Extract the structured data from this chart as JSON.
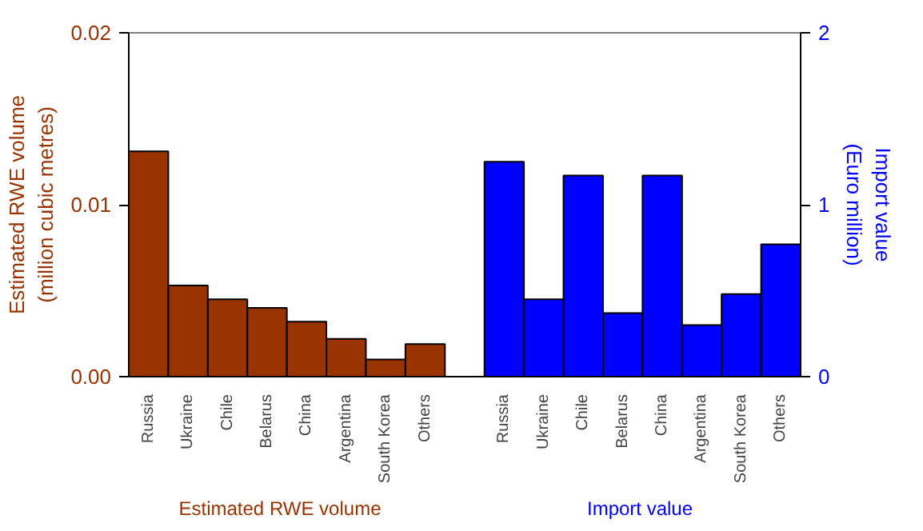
{
  "chart_data": {
    "type": "bar",
    "categories": [
      "Russia",
      "Ukraine",
      "Chile",
      "Belarus",
      "China",
      "Argentina",
      "South Korea",
      "Others",
      null,
      "Russia",
      "Ukraine",
      "Chile",
      "Belarus",
      "China",
      "Argentina",
      "South Korea",
      "Others"
    ],
    "series": [
      {
        "name": "Estimated RWE volume",
        "color": "#993300",
        "values": [
          0.0131,
          0.0053,
          0.0045,
          0.004,
          0.0032,
          0.0022,
          0.001,
          0.0019,
          null,
          null,
          null,
          null,
          null,
          null,
          null,
          null,
          null
        ]
      },
      {
        "name": "Import value",
        "color": "#0000ff",
        "axis": "y2",
        "values": [
          null,
          null,
          null,
          null,
          null,
          null,
          null,
          null,
          null,
          1.25,
          0.45,
          1.17,
          0.37,
          1.17,
          0.3,
          0.48,
          0.77
        ]
      }
    ],
    "ylabel": "Estimated RWE volume\n(million cubic metres)",
    "y2label": "Import value\n(Euro million)",
    "ylim": [
      0,
      0.02
    ],
    "yticks": [
      {
        "value": 0,
        "label": "0.00"
      },
      {
        "value": 0.01,
        "label": "0.01"
      },
      {
        "value": 0.02,
        "label": "0.02"
      }
    ],
    "y2lim": [
      0,
      2
    ],
    "y2ticks": [
      0,
      1,
      2
    ],
    "grid": false
  }
}
